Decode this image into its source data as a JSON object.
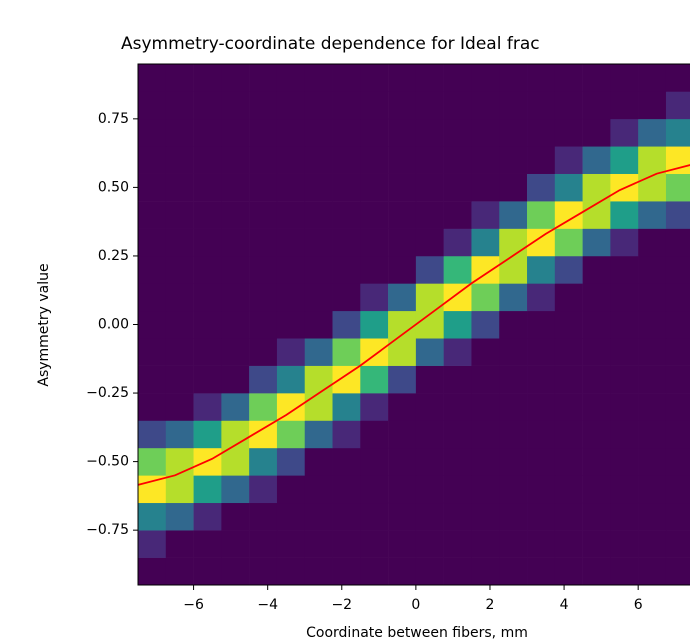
{
  "chart_data": {
    "type": "heatmap",
    "title": "Asymmetry-coordinate dependence for Ideal frac",
    "xlabel": "Coordinate between fibers, mm",
    "ylabel": "Asymmetry value",
    "xlim": [
      -7.5,
      7.5
    ],
    "ylim": [
      -0.95,
      0.95
    ],
    "xticks": [
      {
        "value": -6,
        "label": "−6"
      },
      {
        "value": -4,
        "label": "−4"
      },
      {
        "value": -2,
        "label": "−2"
      },
      0,
      2,
      4,
      6
    ],
    "yticks": [
      {
        "value": -0.75,
        "label": "−0.75"
      },
      {
        "value": -0.5,
        "label": "−0.50"
      },
      {
        "value": -0.25,
        "label": "−0.25"
      },
      {
        "value": 0,
        "label": "0.00"
      },
      0.25,
      {
        "value": 0.5,
        "label": "0.50"
      },
      0.75
    ],
    "colormap": [
      "#440154",
      "#482878",
      "#3e4989",
      "#31688e",
      "#26828e",
      "#1f9e89",
      "#35b779",
      "#6ece58",
      "#b5de2b",
      "#fde725"
    ],
    "xbins": [
      -7.5,
      -6.75,
      -6,
      -5.25,
      -4.5,
      -3.75,
      -3,
      -2.25,
      -1.5,
      -0.75,
      0,
      0.75,
      1.5,
      2.25,
      3,
      3.75,
      4.5,
      5.25,
      6,
      6.75,
      7.5
    ],
    "ybins": [
      -0.95,
      -0.85,
      -0.75,
      -0.65,
      -0.55,
      -0.45,
      -0.35,
      -0.25,
      -0.15,
      -0.05,
      0.05,
      0.15,
      0.25,
      0.35,
      0.45,
      0.55,
      0.65,
      0.75,
      0.85,
      0.95
    ],
    "z": [
      [
        0,
        0,
        0,
        0,
        0,
        0,
        0,
        0,
        0,
        0,
        0,
        0,
        0,
        0,
        0,
        0,
        0,
        0,
        0,
        0
      ],
      [
        1,
        0,
        0,
        0,
        0,
        0,
        0,
        0,
        0,
        0,
        0,
        0,
        0,
        0,
        0,
        0,
        0,
        0,
        0,
        0
      ],
      [
        4,
        3,
        1,
        0,
        0,
        0,
        0,
        0,
        0,
        0,
        0,
        0,
        0,
        0,
        0,
        0,
        0,
        0,
        0,
        0
      ],
      [
        9,
        8,
        5,
        3,
        1,
        0,
        0,
        0,
        0,
        0,
        0,
        0,
        0,
        0,
        0,
        0,
        0,
        0,
        0,
        0
      ],
      [
        7,
        8,
        9,
        8,
        4,
        2,
        0,
        0,
        0,
        0,
        0,
        0,
        0,
        0,
        0,
        0,
        0,
        0,
        0,
        0
      ],
      [
        2,
        3,
        5,
        8,
        9,
        7,
        3,
        1,
        0,
        0,
        0,
        0,
        0,
        0,
        0,
        0,
        0,
        0,
        0,
        0
      ],
      [
        0,
        0,
        1,
        3,
        7,
        9,
        8,
        4,
        1,
        0,
        0,
        0,
        0,
        0,
        0,
        0,
        0,
        0,
        0,
        0
      ],
      [
        0,
        0,
        0,
        0,
        2,
        4,
        8,
        9,
        6,
        2,
        0,
        0,
        0,
        0,
        0,
        0,
        0,
        0,
        0,
        0
      ],
      [
        0,
        0,
        0,
        0,
        0,
        1,
        3,
        7,
        9,
        8,
        3,
        1,
        0,
        0,
        0,
        0,
        0,
        0,
        0,
        0
      ],
      [
        0,
        0,
        0,
        0,
        0,
        0,
        0,
        2,
        5,
        8,
        8,
        5,
        2,
        0,
        0,
        0,
        0,
        0,
        0,
        0
      ],
      [
        0,
        0,
        0,
        0,
        0,
        0,
        0,
        0,
        1,
        3,
        8,
        9,
        7,
        3,
        1,
        0,
        0,
        0,
        0,
        0
      ],
      [
        0,
        0,
        0,
        0,
        0,
        0,
        0,
        0,
        0,
        0,
        2,
        6,
        9,
        8,
        4,
        2,
        0,
        0,
        0,
        0
      ],
      [
        0,
        0,
        0,
        0,
        0,
        0,
        0,
        0,
        0,
        0,
        0,
        1,
        4,
        8,
        9,
        7,
        3,
        1,
        0,
        0
      ],
      [
        0,
        0,
        0,
        0,
        0,
        0,
        0,
        0,
        0,
        0,
        0,
        0,
        1,
        3,
        7,
        9,
        8,
        5,
        3,
        2
      ],
      [
        0,
        0,
        0,
        0,
        0,
        0,
        0,
        0,
        0,
        0,
        0,
        0,
        0,
        0,
        2,
        4,
        8,
        9,
        8,
        7
      ],
      [
        0,
        0,
        0,
        0,
        0,
        0,
        0,
        0,
        0,
        0,
        0,
        0,
        0,
        0,
        0,
        1,
        3,
        5,
        8,
        9
      ],
      [
        0,
        0,
        0,
        0,
        0,
        0,
        0,
        0,
        0,
        0,
        0,
        0,
        0,
        0,
        0,
        0,
        0,
        1,
        3,
        4
      ],
      [
        0,
        0,
        0,
        0,
        0,
        0,
        0,
        0,
        0,
        0,
        0,
        0,
        0,
        0,
        0,
        0,
        0,
        0,
        0,
        1
      ],
      [
        0,
        0,
        0,
        0,
        0,
        0,
        0,
        0,
        0,
        0,
        0,
        0,
        0,
        0,
        0,
        0,
        0,
        0,
        0,
        0
      ]
    ],
    "line": {
      "color": "#ff0000",
      "x": [
        -7.5,
        -6.5,
        -5.5,
        -4.5,
        -3.5,
        -2.5,
        -1.5,
        -0.5,
        0.5,
        1.5,
        2.5,
        3.5,
        4.5,
        5.5,
        6.5,
        7.5
      ],
      "y": [
        -0.585,
        -0.55,
        -0.49,
        -0.41,
        -0.33,
        -0.24,
        -0.15,
        -0.05,
        0.05,
        0.15,
        0.24,
        0.33,
        0.41,
        0.49,
        0.55,
        0.585
      ]
    }
  }
}
